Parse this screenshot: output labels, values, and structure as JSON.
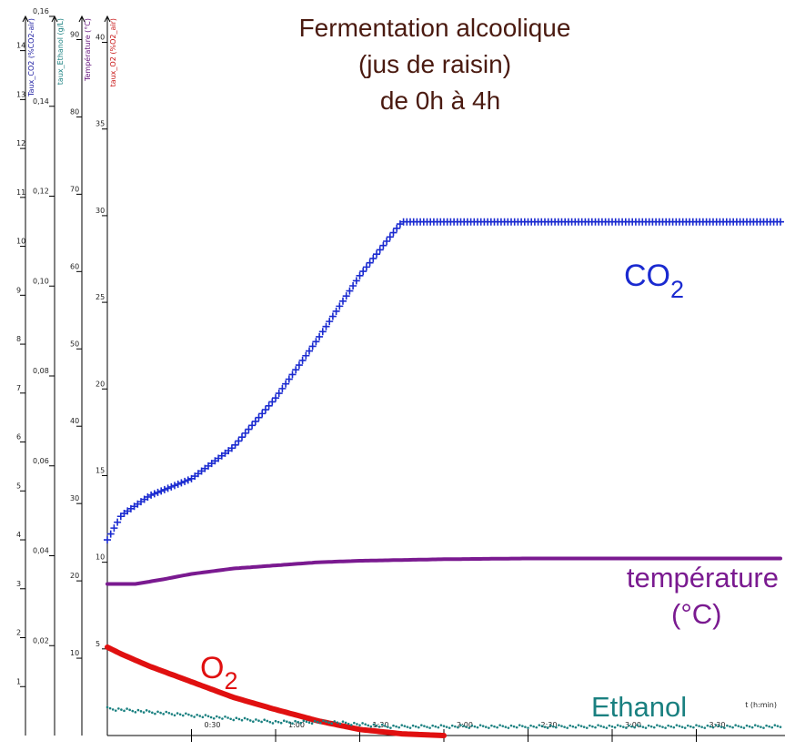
{
  "chart_data": {
    "type": "line",
    "title": [
      "Fermentation alcoolique",
      "(jus de raisin)",
      "de 0h à 4h"
    ],
    "xlabel": "t (h:min)",
    "xlim": [
      0,
      240
    ],
    "x_tick_labels": [
      "0:30",
      "1:00",
      "1:30",
      "2:00",
      "2:30",
      "3:00",
      "3:30"
    ],
    "x_ticks_min": [
      30,
      60,
      90,
      120,
      150,
      180,
      210
    ],
    "grid": false,
    "axes": [
      {
        "id": "co2",
        "title": "Taux_CO2 (%CO2-air)",
        "color": "#1a1aa0",
        "lim": [
          0,
          14.7
        ],
        "ticks": [
          1,
          2,
          3,
          4,
          5,
          6,
          7,
          8,
          9,
          10,
          11,
          12,
          13,
          14
        ],
        "tick_labels": [
          "1",
          "2",
          "3",
          "4",
          "5",
          "6",
          "7",
          "8",
          "9",
          "10",
          "11",
          "12",
          "13",
          "14"
        ]
      },
      {
        "id": "ethanol",
        "title": "taux_Ethanol (g/L)",
        "color": "#1a8080",
        "lim": [
          0,
          0.16
        ],
        "ticks": [
          0.02,
          0.04,
          0.06,
          0.08,
          0.1,
          0.12,
          0.14,
          0.16
        ],
        "tick_labels": [
          "0,02",
          "0,04",
          "0,06",
          "0,08",
          "0,10",
          "0,12",
          "0,14",
          "0,16"
        ]
      },
      {
        "id": "temperature",
        "title": "Température (°C)",
        "color": "#6a1a80",
        "lim": [
          0,
          93
        ],
        "ticks": [
          10,
          20,
          30,
          40,
          50,
          60,
          70,
          80,
          90
        ],
        "tick_labels": [
          "10",
          "20",
          "30",
          "40",
          "50",
          "60",
          "70",
          "80",
          "90"
        ]
      },
      {
        "id": "o2",
        "title": "taux_O2 (%O2_air)",
        "color": "#c81414",
        "lim": [
          0,
          41.5
        ],
        "ticks": [
          5,
          10,
          15,
          20,
          25,
          30,
          35,
          40
        ],
        "tick_labels": [
          "5",
          "10",
          "15",
          "20",
          "25",
          "30",
          "35",
          "40"
        ]
      }
    ],
    "series": [
      {
        "name": "CO2",
        "axis": "co2",
        "color": "#1a2ad0",
        "marker": "+",
        "x": [
          0,
          5,
          15,
          30,
          45,
          60,
          75,
          90,
          105,
          120,
          135,
          150,
          165,
          180,
          195,
          210,
          225,
          240
        ],
        "y": [
          4.0,
          4.5,
          4.9,
          5.25,
          5.9,
          6.9,
          8.1,
          9.4,
          10.5,
          10.5,
          10.5,
          10.5,
          10.5,
          10.5,
          10.5,
          10.5,
          10.5,
          10.5
        ]
      },
      {
        "name": "température\n(°C)",
        "axis": "temperature",
        "color": "#7a1a90",
        "x": [
          0,
          10,
          20,
          30,
          45,
          60,
          75,
          90,
          105,
          120,
          150,
          180,
          210,
          240
        ],
        "y": [
          19.6,
          19.6,
          20.2,
          20.9,
          21.6,
          22.0,
          22.4,
          22.6,
          22.7,
          22.8,
          22.9,
          22.9,
          22.9,
          22.9
        ]
      },
      {
        "name": "O2",
        "axis": "o2",
        "color": "#e01010",
        "x": [
          0,
          5,
          15,
          30,
          45,
          60,
          75,
          90,
          105,
          120
        ],
        "y": [
          5.1,
          4.7,
          4.0,
          3.1,
          2.2,
          1.5,
          0.85,
          0.35,
          0.1,
          0.0
        ]
      },
      {
        "name": "Ethanol",
        "axis": "ethanol",
        "color": "#1a8080",
        "x": [
          0,
          20,
          40,
          60,
          80,
          100,
          120,
          140,
          160,
          180,
          200,
          220,
          240
        ],
        "y": [
          0.006,
          0.005,
          0.004,
          0.003,
          0.003,
          0.002,
          0.002,
          0.002,
          0.002,
          0.002,
          0.002,
          0.002,
          0.002
        ]
      }
    ],
    "series_labels": {
      "co2": "CO",
      "co2_sub": "2",
      "o2": "O",
      "o2_sub": "2",
      "temperature_line1": "température",
      "temperature_line2": "(°C)",
      "ethanol": "Ethanol"
    }
  }
}
